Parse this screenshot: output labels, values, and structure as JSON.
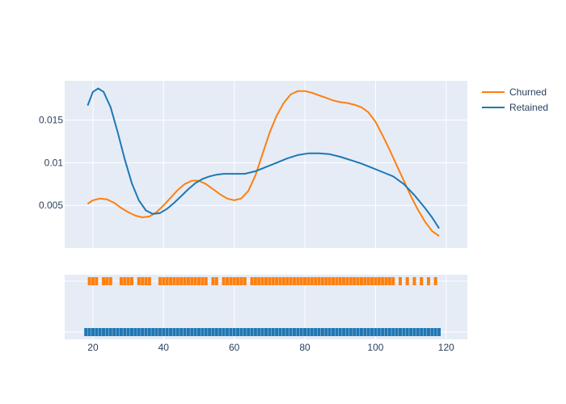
{
  "chart_data": {
    "type": "line",
    "subtype": "distplot with rug",
    "x_range": [
      12,
      126
    ],
    "y_range": [
      0,
      0.0196
    ],
    "x_ticks": [
      20,
      40,
      60,
      80,
      100,
      120
    ],
    "x_tick_labels": [
      "20",
      "40",
      "60",
      "80",
      "100",
      "120"
    ],
    "y_ticks": [
      0.005,
      0.01,
      0.015
    ],
    "y_tick_labels": [
      "0.005",
      "0.01",
      "0.015"
    ],
    "legend_position": "top-right",
    "grid": true,
    "series": [
      {
        "name": "Churned",
        "color": "#ff7f0e",
        "density": [
          [
            18.5,
            0.0052
          ],
          [
            20,
            0.0056
          ],
          [
            22,
            0.0058
          ],
          [
            24,
            0.0057
          ],
          [
            26,
            0.0053
          ],
          [
            28,
            0.0047
          ],
          [
            30,
            0.0042
          ],
          [
            32,
            0.0038
          ],
          [
            34,
            0.0036
          ],
          [
            36,
            0.0037
          ],
          [
            38,
            0.0042
          ],
          [
            40,
            0.005
          ],
          [
            42,
            0.0059
          ],
          [
            44,
            0.0068
          ],
          [
            46,
            0.0075
          ],
          [
            48,
            0.0079
          ],
          [
            50,
            0.0079
          ],
          [
            52,
            0.0075
          ],
          [
            54,
            0.0069
          ],
          [
            56,
            0.0063
          ],
          [
            58,
            0.0058
          ],
          [
            60,
            0.0056
          ],
          [
            62,
            0.0058
          ],
          [
            64,
            0.0067
          ],
          [
            66,
            0.0085
          ],
          [
            68,
            0.011
          ],
          [
            70,
            0.0135
          ],
          [
            72,
            0.0155
          ],
          [
            74,
            0.017
          ],
          [
            76,
            0.018
          ],
          [
            78,
            0.0184
          ],
          [
            80,
            0.0184
          ],
          [
            82,
            0.0182
          ],
          [
            84,
            0.0179
          ],
          [
            86,
            0.0176
          ],
          [
            88,
            0.0173
          ],
          [
            90,
            0.0171
          ],
          [
            92,
            0.017
          ],
          [
            94,
            0.0168
          ],
          [
            96,
            0.0165
          ],
          [
            98,
            0.0159
          ],
          [
            100,
            0.0148
          ],
          [
            102,
            0.0132
          ],
          [
            104,
            0.0115
          ],
          [
            106,
            0.0097
          ],
          [
            108,
            0.0079
          ],
          [
            110,
            0.0061
          ],
          [
            112,
            0.0045
          ],
          [
            114,
            0.0031
          ],
          [
            116,
            0.002
          ],
          [
            118,
            0.0014
          ]
        ],
        "rug": [
          19,
          20,
          21,
          23,
          24,
          25,
          28,
          29,
          30,
          31,
          33,
          34,
          35,
          36,
          39,
          40,
          41,
          42,
          43,
          44,
          45,
          46,
          47,
          48,
          49,
          50,
          51,
          52,
          54,
          55,
          57,
          58,
          59,
          60,
          61,
          62,
          63,
          65,
          66,
          67,
          68,
          69,
          70,
          71,
          72,
          73,
          74,
          75,
          76,
          77,
          78,
          79,
          80,
          81,
          82,
          83,
          84,
          85,
          86,
          87,
          88,
          89,
          90,
          91,
          92,
          93,
          94,
          95,
          96,
          97,
          98,
          99,
          100,
          101,
          102,
          103,
          104,
          105,
          107,
          109,
          111,
          113,
          115,
          117
        ]
      },
      {
        "name": "Retained",
        "color": "#1f77b4",
        "density": [
          [
            18.5,
            0.0167
          ],
          [
            20,
            0.0183
          ],
          [
            21.5,
            0.0187
          ],
          [
            23,
            0.0183
          ],
          [
            25,
            0.0165
          ],
          [
            27,
            0.0136
          ],
          [
            29,
            0.0104
          ],
          [
            31,
            0.0076
          ],
          [
            33,
            0.0056
          ],
          [
            35,
            0.0044
          ],
          [
            37,
            0.004
          ],
          [
            39,
            0.0041
          ],
          [
            41,
            0.0046
          ],
          [
            43,
            0.0053
          ],
          [
            45,
            0.0061
          ],
          [
            47,
            0.0069
          ],
          [
            49,
            0.0076
          ],
          [
            51,
            0.0081
          ],
          [
            53,
            0.0084
          ],
          [
            55,
            0.0086
          ],
          [
            57,
            0.0087
          ],
          [
            60,
            0.0087
          ],
          [
            63,
            0.0087
          ],
          [
            66,
            0.009
          ],
          [
            69,
            0.0095
          ],
          [
            72,
            0.01
          ],
          [
            75,
            0.0105
          ],
          [
            78,
            0.0109
          ],
          [
            81,
            0.0111
          ],
          [
            84,
            0.0111
          ],
          [
            87,
            0.011
          ],
          [
            90,
            0.0107
          ],
          [
            93,
            0.0103
          ],
          [
            96,
            0.0099
          ],
          [
            99,
            0.0094
          ],
          [
            102,
            0.0089
          ],
          [
            105,
            0.0084
          ],
          [
            108,
            0.0075
          ],
          [
            111,
            0.0062
          ],
          [
            114,
            0.0047
          ],
          [
            116,
            0.0036
          ],
          [
            118,
            0.0023
          ]
        ],
        "rug": [
          18,
          19,
          20,
          21,
          22,
          23,
          24,
          25,
          26,
          27,
          28,
          29,
          30,
          31,
          32,
          33,
          34,
          35,
          36,
          37,
          38,
          39,
          40,
          41,
          42,
          43,
          44,
          45,
          46,
          47,
          48,
          49,
          50,
          51,
          52,
          53,
          54,
          55,
          56,
          57,
          58,
          59,
          60,
          61,
          62,
          63,
          64,
          65,
          66,
          67,
          68,
          69,
          70,
          71,
          72,
          73,
          74,
          75,
          76,
          77,
          78,
          79,
          80,
          81,
          82,
          83,
          84,
          85,
          86,
          87,
          88,
          89,
          90,
          91,
          92,
          93,
          94,
          95,
          96,
          97,
          98,
          99,
          100,
          101,
          102,
          103,
          104,
          105,
          106,
          107,
          108,
          109,
          110,
          111,
          112,
          113,
          114,
          115,
          116,
          117,
          118
        ]
      }
    ]
  }
}
